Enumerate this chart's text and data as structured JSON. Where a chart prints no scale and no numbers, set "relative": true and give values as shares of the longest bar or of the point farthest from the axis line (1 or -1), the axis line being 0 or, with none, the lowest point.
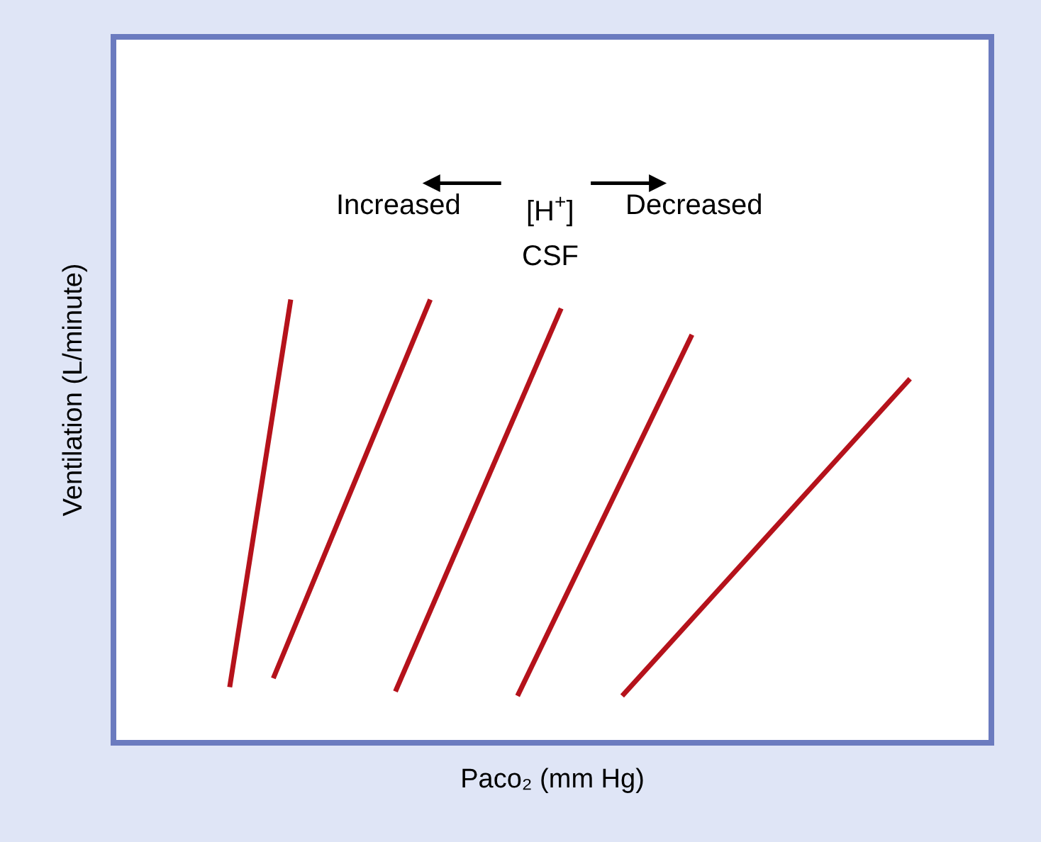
{
  "chart_data": {
    "type": "line",
    "relative": true,
    "xlabel": "Paco₂ (mm Hg)",
    "ylabel": "Ventilation (L/minute)",
    "annotations": [
      "Increased",
      "[H$^{+}$]",
      "Decreased",
      "CSF"
    ],
    "grid": false,
    "legend": false,
    "marker": "none",
    "line_style": "solid",
    "categories": [
      null,
      null,
      null,
      null,
      null,
      null,
      null,
      null,
      null,
      null,
      null,
      null,
      null,
      null,
      null,
      null,
      null,
      null,
      null,
      null,
      null,
      null,
      null,
      null,
      null,
      null,
      null,
      null,
      null,
      null,
      null,
      null,
      null,
      null,
      null,
      null,
      null,
      null,
      null,
      null,
      null,
      null,
      null,
      null,
      null,
      null,
      null,
      null,
      null,
      null,
      null,
      null,
      null,
      null,
      null,
      null,
      null,
      null,
      null,
      null,
      null,
      null,
      null,
      null,
      null,
      null,
      null,
      null,
      null,
      null,
      null,
      null,
      null,
      null,
      null,
      null,
      null,
      null,
      null,
      null,
      null,
      null,
      null,
      null,
      null,
      null,
      null,
      null,
      null,
      null,
      null,
      null,
      null,
      null,
      null,
      null,
      null,
      null,
      null,
      null,
      null
    ],
    "series": [
      {
        "color": "#b5121b",
        "values": [
          null,
          null,
          null,
          null,
          null,
          null,
          null,
          null,
          null,
          null,
          null,
          null,
          null,
          0.12,
          null,
          null,
          null,
          null,
          null,
          null,
          1.0,
          null,
          null,
          null,
          null,
          null,
          null,
          null,
          null,
          null,
          null,
          null,
          null,
          null,
          null,
          null,
          null,
          null,
          null,
          null,
          null,
          null,
          null,
          null,
          null,
          null,
          null,
          null,
          null,
          null,
          null,
          null,
          null,
          null,
          null,
          null,
          null,
          null,
          null,
          null,
          null,
          null,
          null,
          null,
          null,
          null,
          null,
          null,
          null,
          null,
          null,
          null,
          null,
          null,
          null,
          null,
          null,
          null,
          null,
          null,
          null,
          null,
          null,
          null,
          null,
          null,
          null,
          null,
          null,
          null,
          null,
          null,
          null,
          null,
          null,
          null,
          null,
          null,
          null,
          null,
          null
        ]
      },
      {
        "color": "#b5121b",
        "values": [
          null,
          null,
          null,
          null,
          null,
          null,
          null,
          null,
          null,
          null,
          null,
          null,
          null,
          null,
          null,
          null,
          null,
          null,
          0.14,
          null,
          null,
          null,
          null,
          null,
          null,
          null,
          null,
          null,
          null,
          null,
          null,
          null,
          null,
          null,
          null,
          null,
          1.0,
          null,
          null,
          null,
          null,
          null,
          null,
          null,
          null,
          null,
          null,
          null,
          null,
          null,
          null,
          null,
          null,
          null,
          null,
          null,
          null,
          null,
          null,
          null,
          null,
          null,
          null,
          null,
          null,
          null,
          null,
          null,
          null,
          null,
          null,
          null,
          null,
          null,
          null,
          null,
          null,
          null,
          null,
          null,
          null,
          null,
          null,
          null,
          null,
          null,
          null,
          null,
          null,
          null,
          null,
          null,
          null,
          null,
          null,
          null,
          null,
          null,
          null,
          null,
          null
        ]
      },
      {
        "color": "#b5121b",
        "values": [
          null,
          null,
          null,
          null,
          null,
          null,
          null,
          null,
          null,
          null,
          null,
          null,
          null,
          null,
          null,
          null,
          null,
          null,
          null,
          null,
          null,
          null,
          null,
          null,
          null,
          null,
          null,
          null,
          null,
          null,
          null,
          null,
          0.11,
          null,
          null,
          null,
          null,
          null,
          null,
          null,
          null,
          null,
          null,
          null,
          null,
          null,
          null,
          null,
          null,
          null,
          null,
          0.98,
          null,
          null,
          null,
          null,
          null,
          null,
          null,
          null,
          null,
          null,
          null,
          null,
          null,
          null,
          null,
          null,
          null,
          null,
          null,
          null,
          null,
          null,
          null,
          null,
          null,
          null,
          null,
          null,
          null,
          null,
          null,
          null,
          null,
          null,
          null,
          null,
          null,
          null,
          null,
          null,
          null,
          null,
          null,
          null,
          null,
          null,
          null,
          null,
          null
        ]
      },
      {
        "color": "#b5121b",
        "values": [
          null,
          null,
          null,
          null,
          null,
          null,
          null,
          null,
          null,
          null,
          null,
          null,
          null,
          null,
          null,
          null,
          null,
          null,
          null,
          null,
          null,
          null,
          null,
          null,
          null,
          null,
          null,
          null,
          null,
          null,
          null,
          null,
          null,
          null,
          null,
          null,
          null,
          null,
          null,
          null,
          null,
          null,
          null,
          null,
          null,
          null,
          0.1,
          null,
          null,
          null,
          null,
          null,
          null,
          null,
          null,
          null,
          null,
          null,
          null,
          null,
          null,
          null,
          null,
          null,
          null,
          null,
          0.92,
          null,
          null,
          null,
          null,
          null,
          null,
          null,
          null,
          null,
          null,
          null,
          null,
          null,
          null,
          null,
          null,
          null,
          null,
          null,
          null,
          null,
          null,
          null,
          null,
          null,
          null,
          null,
          null,
          null,
          null,
          null,
          null,
          null,
          null
        ]
      },
      {
        "color": "#b5121b",
        "values": [
          null,
          null,
          null,
          null,
          null,
          null,
          null,
          null,
          null,
          null,
          null,
          null,
          null,
          null,
          null,
          null,
          null,
          null,
          null,
          null,
          null,
          null,
          null,
          null,
          null,
          null,
          null,
          null,
          null,
          null,
          null,
          null,
          null,
          null,
          null,
          null,
          null,
          null,
          null,
          null,
          null,
          null,
          null,
          null,
          null,
          null,
          null,
          null,
          null,
          null,
          null,
          null,
          null,
          null,
          null,
          null,
          null,
          null,
          0.1,
          null,
          null,
          null,
          null,
          null,
          null,
          null,
          null,
          null,
          null,
          null,
          null,
          null,
          null,
          null,
          null,
          null,
          null,
          null,
          null,
          null,
          null,
          null,
          null,
          null,
          null,
          null,
          null,
          null,
          null,
          null,
          null,
          0.82,
          null,
          null,
          null,
          null,
          null,
          null,
          null,
          null,
          null
        ]
      }
    ]
  }
}
